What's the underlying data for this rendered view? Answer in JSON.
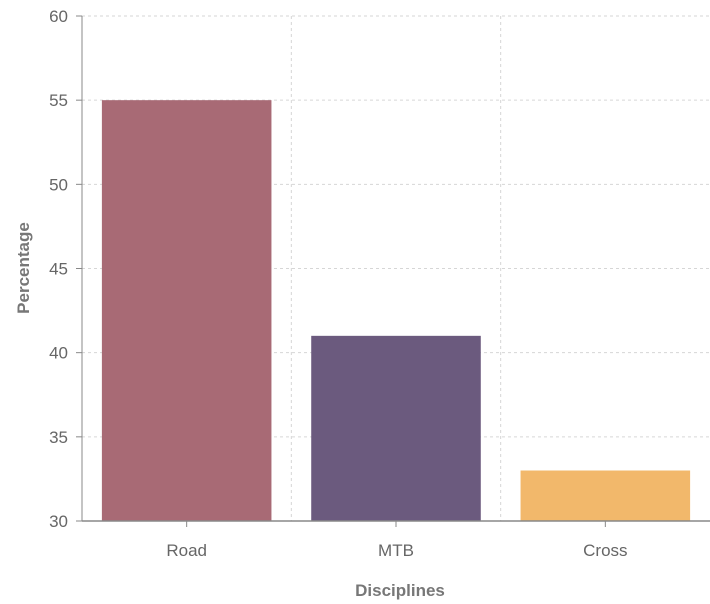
{
  "chart_data": {
    "type": "bar",
    "title": "",
    "xlabel": "Disciplines",
    "ylabel": "Percentage",
    "categories": [
      "Road",
      "MTB",
      "Cross"
    ],
    "values": [
      55,
      41,
      33
    ],
    "colors": [
      "#a86a75",
      "#6b5a7e",
      "#f2b86b"
    ],
    "ylim": [
      30,
      60
    ],
    "yticks": [
      "30",
      "35",
      "40",
      "45",
      "50",
      "55",
      "60"
    ],
    "grid": true,
    "legend": "none"
  }
}
